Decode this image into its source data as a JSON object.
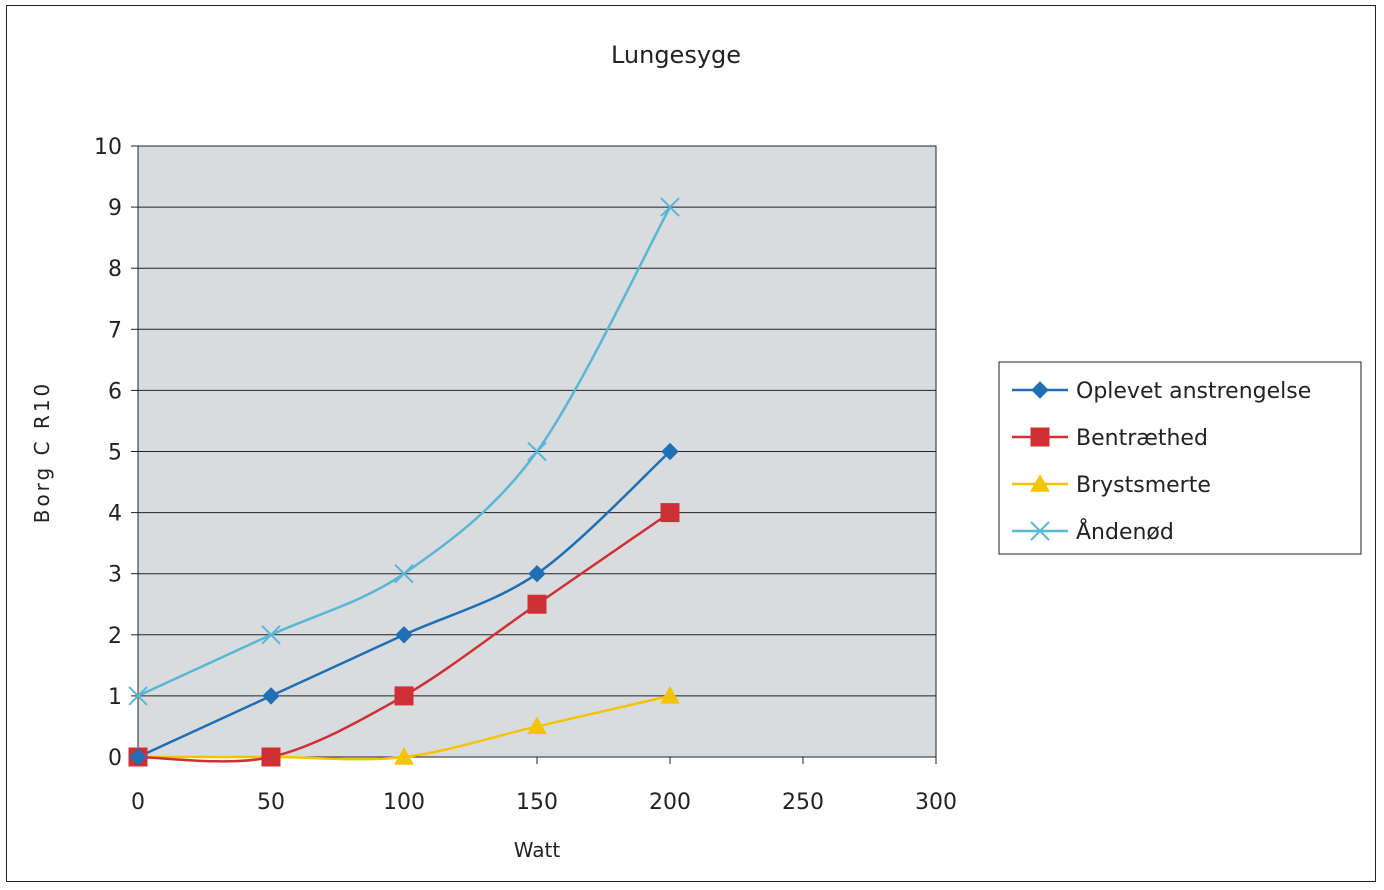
{
  "chart_data": {
    "type": "line",
    "title": "Lungesyge",
    "xlabel": "Watt",
    "ylabel": "Borg C R10",
    "xlim": [
      0,
      300
    ],
    "ylim": [
      0,
      10
    ],
    "x_ticks": [
      "0",
      "50",
      "100",
      "150",
      "200",
      "250",
      "300"
    ],
    "y_ticks": [
      "0",
      "1",
      "2",
      "3",
      "4",
      "5",
      "6",
      "7",
      "8",
      "9",
      "10"
    ],
    "grid": "horizontal",
    "legend_position": "right",
    "plot_background": "#d9dcde",
    "series": [
      {
        "name": "Oplevet anstrengelse",
        "color": "#1f6fb4",
        "marker": "diamond",
        "x": [
          0,
          50,
          100,
          150,
          200
        ],
        "y": [
          0,
          1,
          2,
          3,
          5
        ]
      },
      {
        "name": "Bentræthed",
        "color": "#cf3035",
        "marker": "square",
        "x": [
          0,
          50,
          100,
          150,
          200
        ],
        "y": [
          0,
          0,
          1,
          2.5,
          4
        ]
      },
      {
        "name": "Brystsmerte",
        "color": "#f5c400",
        "marker": "triangle",
        "x": [
          0,
          50,
          100,
          150,
          200
        ],
        "y": [
          0,
          0,
          0,
          0.5,
          1
        ]
      },
      {
        "name": "Åndenød",
        "color": "#59b6d6",
        "marker": "x",
        "x": [
          0,
          50,
          100,
          150,
          200
        ],
        "y": [
          1,
          2,
          3,
          5,
          9
        ]
      }
    ]
  }
}
